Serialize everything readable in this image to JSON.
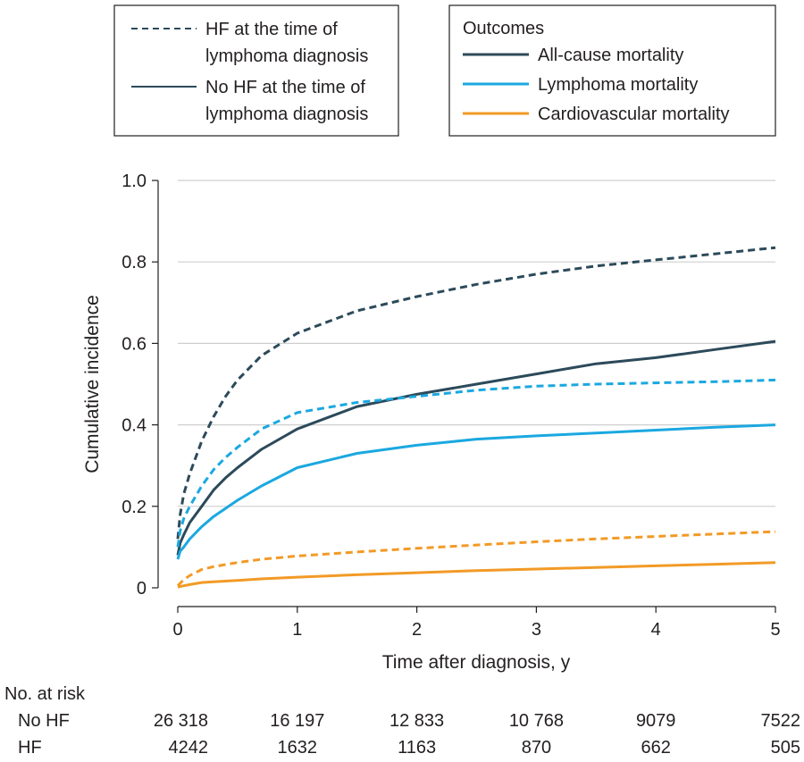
{
  "chart_data": {
    "type": "line",
    "xlabel": "Time after diagnosis, y",
    "ylabel": "Cumulative incidence",
    "xlim": [
      0,
      5
    ],
    "ylim": [
      0,
      1.0
    ],
    "x_ticks": [
      "0",
      "1",
      "2",
      "3",
      "4",
      "5"
    ],
    "y_ticks": [
      "0",
      "0.2",
      "0.4",
      "0.6",
      "0.8",
      "1.0"
    ],
    "grid": "horizontal",
    "legend_groups": {
      "title": "",
      "entries": [
        {
          "label_line1": "HF at the time of",
          "label_line2": "lymphoma diagnosis",
          "style": "dashed"
        },
        {
          "label_line1": "No HF at the time of",
          "label_line2": "lymphoma diagnosis",
          "style": "solid"
        }
      ]
    },
    "legend_outcomes": {
      "title": "Outcomes",
      "entries": [
        {
          "label": "All-cause mortality",
          "color": "#2c4a5a"
        },
        {
          "label": "Lymphoma mortality",
          "color": "#1ba8e0"
        },
        {
          "label": "Cardiovascular mortality",
          "color": "#f29a26"
        }
      ]
    },
    "series": [
      {
        "outcome": "All-cause mortality",
        "group": "HF",
        "style": "dashed",
        "color": "#2c4a5a",
        "x": [
          0,
          0.02,
          0.05,
          0.1,
          0.2,
          0.3,
          0.4,
          0.5,
          0.7,
          1.0,
          1.5,
          2.0,
          2.5,
          3.0,
          3.5,
          4.0,
          4.5,
          5.0
        ],
        "y": [
          0.12,
          0.18,
          0.23,
          0.28,
          0.36,
          0.42,
          0.47,
          0.51,
          0.57,
          0.625,
          0.68,
          0.715,
          0.745,
          0.77,
          0.79,
          0.805,
          0.82,
          0.835
        ]
      },
      {
        "outcome": "All-cause mortality",
        "group": "No HF",
        "style": "solid",
        "color": "#2c4a5a",
        "x": [
          0,
          0.02,
          0.05,
          0.1,
          0.2,
          0.3,
          0.4,
          0.5,
          0.7,
          1.0,
          1.5,
          2.0,
          2.5,
          3.0,
          3.5,
          4.0,
          4.5,
          5.0
        ],
        "y": [
          0.08,
          0.11,
          0.13,
          0.16,
          0.2,
          0.24,
          0.27,
          0.295,
          0.34,
          0.39,
          0.445,
          0.475,
          0.5,
          0.525,
          0.55,
          0.565,
          0.585,
          0.605
        ]
      },
      {
        "outcome": "Lymphoma mortality",
        "group": "HF",
        "style": "dashed",
        "color": "#1ba8e0",
        "x": [
          0,
          0.02,
          0.05,
          0.1,
          0.2,
          0.3,
          0.4,
          0.5,
          0.7,
          1.0,
          1.5,
          2.0,
          2.5,
          3.0,
          3.5,
          4.0,
          4.5,
          5.0
        ],
        "y": [
          0.1,
          0.14,
          0.17,
          0.2,
          0.25,
          0.29,
          0.32,
          0.345,
          0.39,
          0.43,
          0.455,
          0.47,
          0.485,
          0.495,
          0.5,
          0.503,
          0.506,
          0.51
        ]
      },
      {
        "outcome": "Lymphoma mortality",
        "group": "No HF",
        "style": "solid",
        "color": "#1ba8e0",
        "x": [
          0,
          0.02,
          0.05,
          0.1,
          0.2,
          0.3,
          0.4,
          0.5,
          0.7,
          1.0,
          1.5,
          2.0,
          2.5,
          3.0,
          3.5,
          4.0,
          4.5,
          5.0
        ],
        "y": [
          0.07,
          0.09,
          0.1,
          0.12,
          0.15,
          0.175,
          0.195,
          0.215,
          0.25,
          0.295,
          0.33,
          0.35,
          0.365,
          0.373,
          0.38,
          0.387,
          0.394,
          0.4
        ]
      },
      {
        "outcome": "Cardiovascular mortality",
        "group": "HF",
        "style": "dashed",
        "color": "#f29a26",
        "x": [
          0,
          0.05,
          0.1,
          0.2,
          0.3,
          0.5,
          0.7,
          1.0,
          1.5,
          2.0,
          2.5,
          3.0,
          3.5,
          4.0,
          4.5,
          5.0
        ],
        "y": [
          0.005,
          0.02,
          0.03,
          0.045,
          0.052,
          0.062,
          0.07,
          0.078,
          0.088,
          0.097,
          0.105,
          0.113,
          0.12,
          0.126,
          0.132,
          0.138
        ]
      },
      {
        "outcome": "Cardiovascular mortality",
        "group": "No HF",
        "style": "solid",
        "color": "#f29a26",
        "x": [
          0,
          0.05,
          0.1,
          0.2,
          0.3,
          0.5,
          0.7,
          1.0,
          1.5,
          2.0,
          2.5,
          3.0,
          3.5,
          4.0,
          4.5,
          5.0
        ],
        "y": [
          0.002,
          0.005,
          0.008,
          0.013,
          0.015,
          0.018,
          0.022,
          0.026,
          0.032,
          0.037,
          0.042,
          0.046,
          0.05,
          0.054,
          0.058,
          0.062
        ]
      }
    ],
    "risk_table": {
      "title": "No. at risk",
      "rows": [
        {
          "label": "No HF",
          "values": [
            "26 318",
            "16 197",
            "12 833",
            "10 768",
            "9079",
            "7522"
          ]
        },
        {
          "label": "HF",
          "values": [
            "4242",
            "1632",
            "1163",
            "870",
            "662",
            "505"
          ]
        }
      ]
    }
  }
}
